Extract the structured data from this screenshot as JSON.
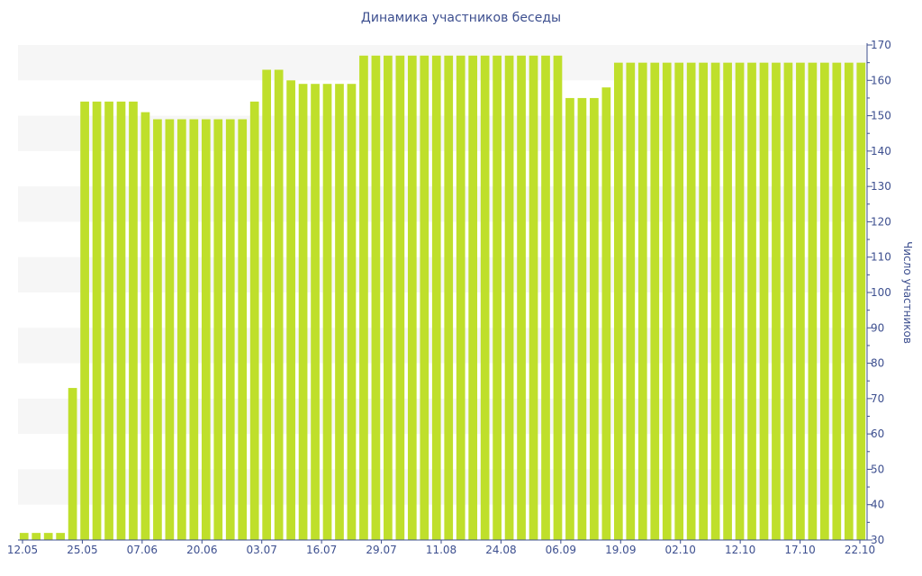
{
  "chart_data": {
    "type": "bar",
    "title": "Динамика участников беседы",
    "ylabel": "Число участников",
    "xlabel": "",
    "ylim": [
      30,
      170
    ],
    "y_ticks": [
      30,
      40,
      50,
      60,
      70,
      80,
      90,
      100,
      110,
      120,
      130,
      140,
      150,
      160,
      170
    ],
    "y_axis_side": "right",
    "x_tick_labels": [
      "12.05",
      "25.05",
      "07.06",
      "20.06",
      "03.07",
      "16.07",
      "29.07",
      "11.08",
      "24.08",
      "06.09",
      "19.09",
      "02.10",
      "12.10",
      "17.10",
      "22.10"
    ],
    "grid": "alternating-bands",
    "series": [
      {
        "values": [
          32,
          32,
          32,
          32,
          73,
          154,
          154,
          154,
          154,
          154,
          151,
          149,
          149,
          149,
          149,
          149,
          149,
          149,
          149,
          154,
          163,
          163,
          160,
          159,
          159,
          159,
          159,
          159,
          167,
          167,
          167,
          167,
          167,
          167,
          167,
          167,
          167,
          167,
          167,
          167,
          167,
          167,
          167,
          167,
          167,
          155,
          155,
          155,
          158,
          165,
          165,
          165,
          165,
          165,
          165,
          165,
          165,
          165,
          165,
          165,
          165,
          165,
          165,
          165,
          165,
          165,
          165,
          165,
          165,
          165
        ]
      }
    ]
  },
  "colors": {
    "bar": "#bfdf2b",
    "band": "#f6f6f6",
    "text": "#3d4f8f",
    "axis": "#3d4f8f"
  }
}
